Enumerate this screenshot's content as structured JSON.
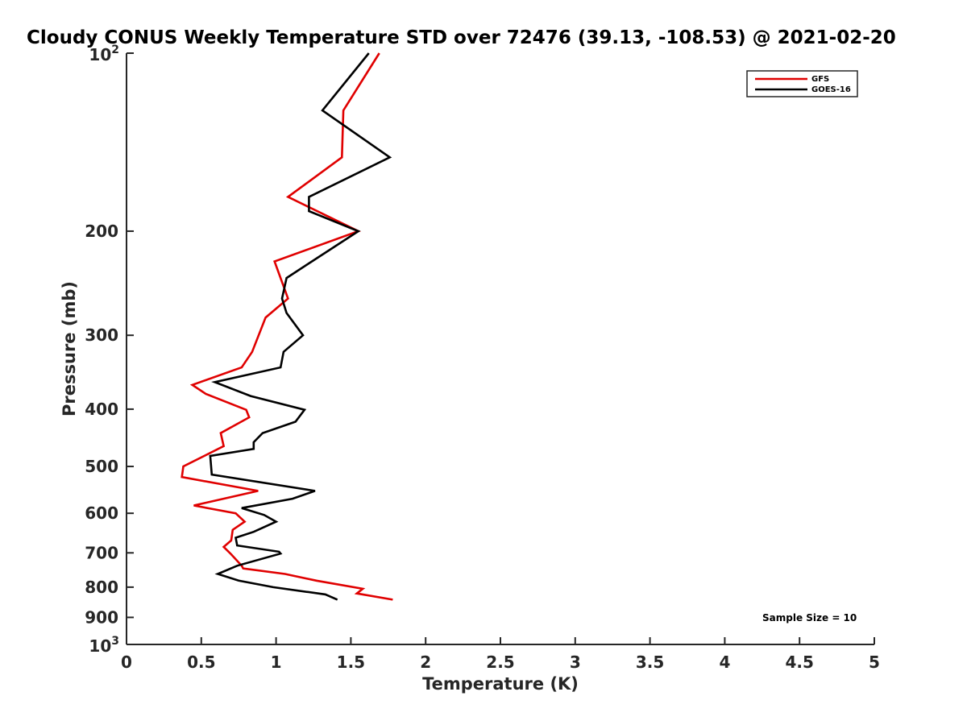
{
  "chart_data": {
    "type": "line",
    "title": "Cloudy CONUS Weekly Temperature STD over 72476 (39.13, -108.53) @ 2021-02-20",
    "xlabel": "Temperature (K)",
    "ylabel": "Pressure (mb)",
    "xlim": [
      0,
      5
    ],
    "ylim": [
      100,
      1000
    ],
    "y_scale": "log",
    "y_reversed": true,
    "grid": false,
    "legend_placement": "top-right",
    "x_ticks": [
      0,
      0.5,
      1,
      1.5,
      2,
      2.5,
      3,
      3.5,
      4,
      4.5,
      5
    ],
    "x_tick_labels": [
      "0",
      "0.5",
      "1",
      "1.5",
      "2",
      "2.5",
      "3",
      "3.5",
      "4",
      "4.5",
      "5"
    ],
    "y_ticks": [
      {
        "value": 100,
        "base": "10",
        "exp": "2"
      },
      {
        "value": 200,
        "label": "200"
      },
      {
        "value": 300,
        "label": "300"
      },
      {
        "value": 400,
        "label": "400"
      },
      {
        "value": 500,
        "label": "500"
      },
      {
        "value": 600,
        "label": "600"
      },
      {
        "value": 700,
        "label": "700"
      },
      {
        "value": 800,
        "label": "800"
      },
      {
        "value": 900,
        "label": "900"
      },
      {
        "value": 1000,
        "base": "10",
        "exp": "3"
      }
    ],
    "annotation": "Sample Size = 10",
    "series": [
      {
        "name": "GFS",
        "color": "#e00000",
        "points": [
          [
            1.69,
            100
          ],
          [
            1.45,
            125
          ],
          [
            1.44,
            150
          ],
          [
            1.08,
            175
          ],
          [
            1.55,
            200
          ],
          [
            0.99,
            225
          ],
          [
            1.08,
            260
          ],
          [
            0.93,
            280
          ],
          [
            0.84,
            320
          ],
          [
            0.77,
            340
          ],
          [
            0.44,
            364
          ],
          [
            0.53,
            377
          ],
          [
            0.8,
            401
          ],
          [
            0.82,
            413
          ],
          [
            0.63,
            439
          ],
          [
            0.65,
            462
          ],
          [
            0.38,
            500
          ],
          [
            0.37,
            521
          ],
          [
            0.88,
            550
          ],
          [
            0.45,
            582
          ],
          [
            0.73,
            600
          ],
          [
            0.79,
            620
          ],
          [
            0.71,
            640
          ],
          [
            0.7,
            667
          ],
          [
            0.65,
            684
          ],
          [
            0.7,
            704
          ],
          [
            0.77,
            736
          ],
          [
            0.78,
            744
          ],
          [
            1.06,
            760
          ],
          [
            1.27,
            780
          ],
          [
            1.58,
            805
          ],
          [
            1.54,
            820
          ],
          [
            1.78,
            840
          ]
        ]
      },
      {
        "name": "GOES-16",
        "color": "#000000",
        "points": [
          [
            1.62,
            100
          ],
          [
            1.31,
            125
          ],
          [
            1.76,
            150
          ],
          [
            1.22,
            175
          ],
          [
            1.22,
            185
          ],
          [
            1.55,
            200
          ],
          [
            1.24,
            225
          ],
          [
            1.07,
            240
          ],
          [
            1.04,
            260
          ],
          [
            1.07,
            275
          ],
          [
            1.18,
            300
          ],
          [
            1.05,
            320
          ],
          [
            1.03,
            340
          ],
          [
            0.59,
            360
          ],
          [
            0.83,
            380
          ],
          [
            1.19,
            401
          ],
          [
            1.13,
            420
          ],
          [
            0.91,
            439
          ],
          [
            0.85,
            455
          ],
          [
            0.85,
            467
          ],
          [
            0.56,
            480
          ],
          [
            0.57,
            516
          ],
          [
            1.26,
            550
          ],
          [
            1.11,
            567
          ],
          [
            0.77,
            588
          ],
          [
            0.92,
            604
          ],
          [
            1.0,
            620
          ],
          [
            0.85,
            645
          ],
          [
            0.73,
            660
          ],
          [
            0.74,
            680
          ],
          [
            1.02,
            697
          ],
          [
            1.03,
            702
          ],
          [
            0.74,
            736
          ],
          [
            0.61,
            760
          ],
          [
            0.75,
            780
          ],
          [
            0.98,
            800
          ],
          [
            1.33,
            823
          ],
          [
            1.41,
            840
          ]
        ]
      }
    ]
  }
}
